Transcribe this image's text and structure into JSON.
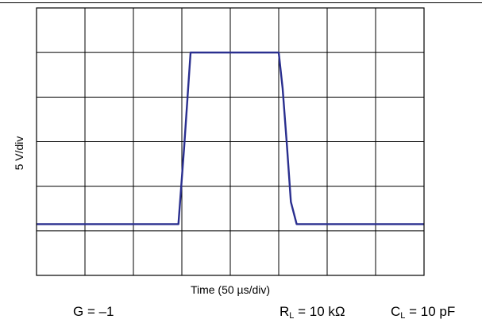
{
  "chart_data": {
    "type": "line",
    "title": "",
    "xlabel": "Time (50 µs/div)",
    "ylabel": "5 V/div",
    "grid": true,
    "x_divisions": 8,
    "y_divisions": 6,
    "xlim": [
      0,
      8
    ],
    "ylim": [
      0,
      6
    ],
    "series": [
      {
        "color": "#2a2f8f",
        "x": [
          0,
          2.8,
          2.93,
          3.05,
          3.18,
          5.0,
          5.08,
          5.17,
          5.25,
          5.37,
          8.0
        ],
        "y": [
          1.15,
          1.15,
          1.15,
          2.9,
          5.0,
          5.0,
          4.2,
          2.9,
          1.65,
          1.15,
          1.15
        ]
      }
    ]
  },
  "conditions": {
    "gain": "G = –1",
    "rl_prefix": "R",
    "rl_sub": "L",
    "rl_value": " = 10 kΩ",
    "cl_prefix": "C",
    "cl_sub": "L",
    "cl_value": " = 10 pF"
  }
}
